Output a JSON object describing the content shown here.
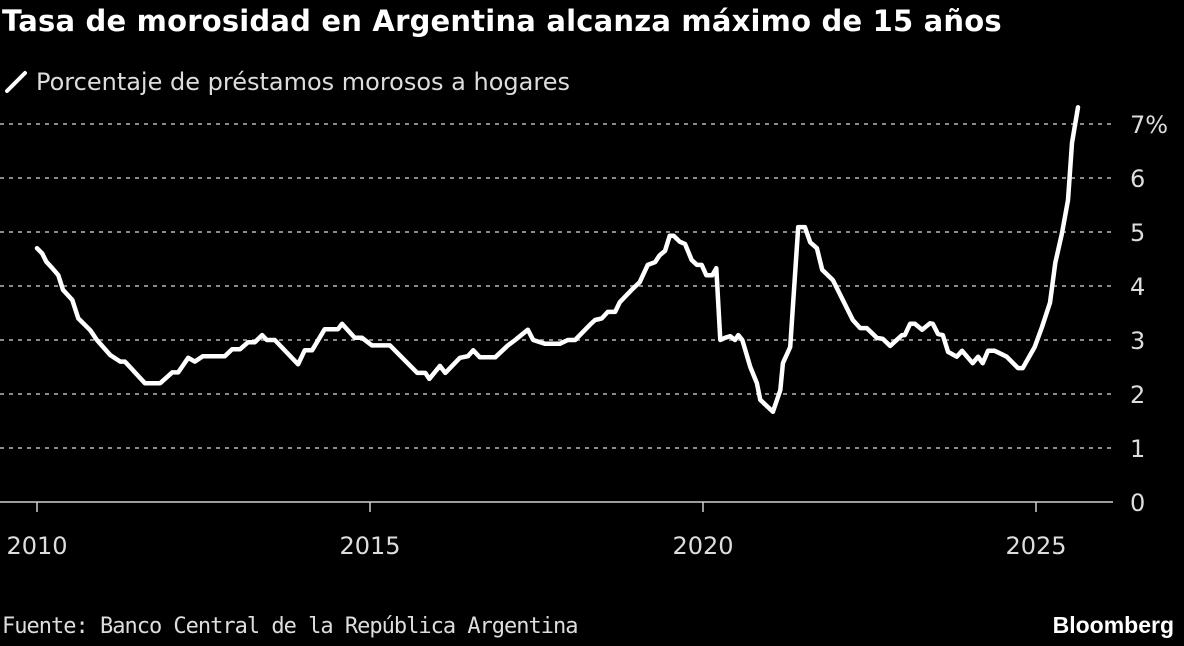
{
  "chart_data": {
    "type": "line",
    "title": "Tasa de morosidad en Argentina alcanza máximo de 15 años",
    "legend": "Porcentaje de préstamos morosos a hogares",
    "legend_placement": "top-left",
    "source": "Fuente: Banco Central de la República Argentina",
    "brand": "Bloomberg",
    "xlabel": "",
    "ylabel": "",
    "xlim": [
      2010,
      2026.2
    ],
    "ylim": [
      0,
      7
    ],
    "grid": true,
    "x_ticks": [
      "2010",
      "2015",
      "2020",
      "2025"
    ],
    "x_tick_values": [
      2010,
      2015,
      2020,
      2025
    ],
    "y_ticks": [
      "0",
      "1",
      "2",
      "3",
      "4",
      "5",
      "6",
      "7%"
    ],
    "y_tick_values": [
      0,
      1,
      2,
      3,
      4,
      5,
      6,
      7
    ],
    "series": [
      {
        "name": "Porcentaje de préstamos morosos a hogares",
        "color": "#ffffff",
        "x": [
          2010.0,
          2010.08,
          2010.14,
          2010.23,
          2010.32,
          2010.39,
          2010.53,
          2010.62,
          2010.8,
          2010.9,
          2011.1,
          2011.25,
          2011.32,
          2011.62,
          2011.85,
          2012.03,
          2012.12,
          2012.27,
          2012.37,
          2012.49,
          2012.82,
          2012.93,
          2013.05,
          2013.17,
          2013.27,
          2013.38,
          2013.45,
          2013.57,
          2013.92,
          2014.02,
          2014.13,
          2014.32,
          2014.52,
          2014.58,
          2014.77,
          2014.88,
          2015.03,
          2015.3,
          2015.71,
          2015.83,
          2015.89,
          2016.05,
          2016.13,
          2016.35,
          2016.47,
          2016.55,
          2016.65,
          2016.88,
          2017.07,
          2017.18,
          2017.37,
          2017.45,
          2017.63,
          2017.85,
          2017.97,
          2018.08,
          2018.3,
          2018.38,
          2018.48,
          2018.57,
          2018.68,
          2018.75,
          2018.93,
          2019.05,
          2019.17,
          2019.28,
          2019.35,
          2019.43,
          2019.5,
          2019.56,
          2019.65,
          2019.73,
          2019.83,
          2019.91,
          2019.98,
          2020.05,
          2020.14,
          2020.2,
          2020.26,
          2020.33,
          2020.41,
          2020.48,
          2020.53,
          2020.59,
          2020.71,
          2020.81,
          2020.86,
          2021.05,
          2021.16,
          2021.2,
          2021.31,
          2021.43,
          2021.53,
          2021.61,
          2021.71,
          2021.79,
          2021.95,
          2022.25,
          2022.36,
          2022.46,
          2022.61,
          2022.7,
          2022.81,
          2022.99,
          2023.03,
          2023.11,
          2023.18,
          2023.29,
          2023.41,
          2023.45,
          2023.53,
          2023.6,
          2023.68,
          2023.81,
          2023.89,
          2024.05,
          2024.13,
          2024.2,
          2024.28,
          2024.38,
          2024.56,
          2024.73,
          2024.8,
          2024.98,
          2025.09,
          2025.21,
          2025.29,
          2025.39,
          2025.48,
          2025.54,
          2025.63
        ],
        "values": [
          4.7,
          4.6,
          4.45,
          4.33,
          4.2,
          3.93,
          3.74,
          3.4,
          3.18,
          3.0,
          2.72,
          2.6,
          2.6,
          2.2,
          2.2,
          2.4,
          2.4,
          2.67,
          2.6,
          2.7,
          2.7,
          2.83,
          2.83,
          2.96,
          2.96,
          3.09,
          3.0,
          3.0,
          2.55,
          2.81,
          2.81,
          3.2,
          3.2,
          3.3,
          3.04,
          3.04,
          2.9,
          2.9,
          2.39,
          2.39,
          2.28,
          2.52,
          2.39,
          2.67,
          2.7,
          2.81,
          2.68,
          2.68,
          2.9,
          3.0,
          3.19,
          3.0,
          2.93,
          2.93,
          3.0,
          3.0,
          3.28,
          3.37,
          3.4,
          3.52,
          3.52,
          3.7,
          3.93,
          4.07,
          4.39,
          4.44,
          4.57,
          4.65,
          4.93,
          4.93,
          4.82,
          4.78,
          4.48,
          4.39,
          4.39,
          4.2,
          4.2,
          4.33,
          3.0,
          3.04,
          3.07,
          3.0,
          3.09,
          3.0,
          2.5,
          2.2,
          1.89,
          1.67,
          2.07,
          2.57,
          2.87,
          5.09,
          5.09,
          4.81,
          4.7,
          4.3,
          4.11,
          3.37,
          3.22,
          3.22,
          3.04,
          3.02,
          2.89,
          3.09,
          3.09,
          3.3,
          3.3,
          3.19,
          3.31,
          3.3,
          3.11,
          3.09,
          2.78,
          2.69,
          2.8,
          2.57,
          2.69,
          2.57,
          2.8,
          2.8,
          2.69,
          2.48,
          2.48,
          2.87,
          3.24,
          3.69,
          4.43,
          4.98,
          5.59,
          6.65,
          7.31
        ]
      }
    ]
  }
}
